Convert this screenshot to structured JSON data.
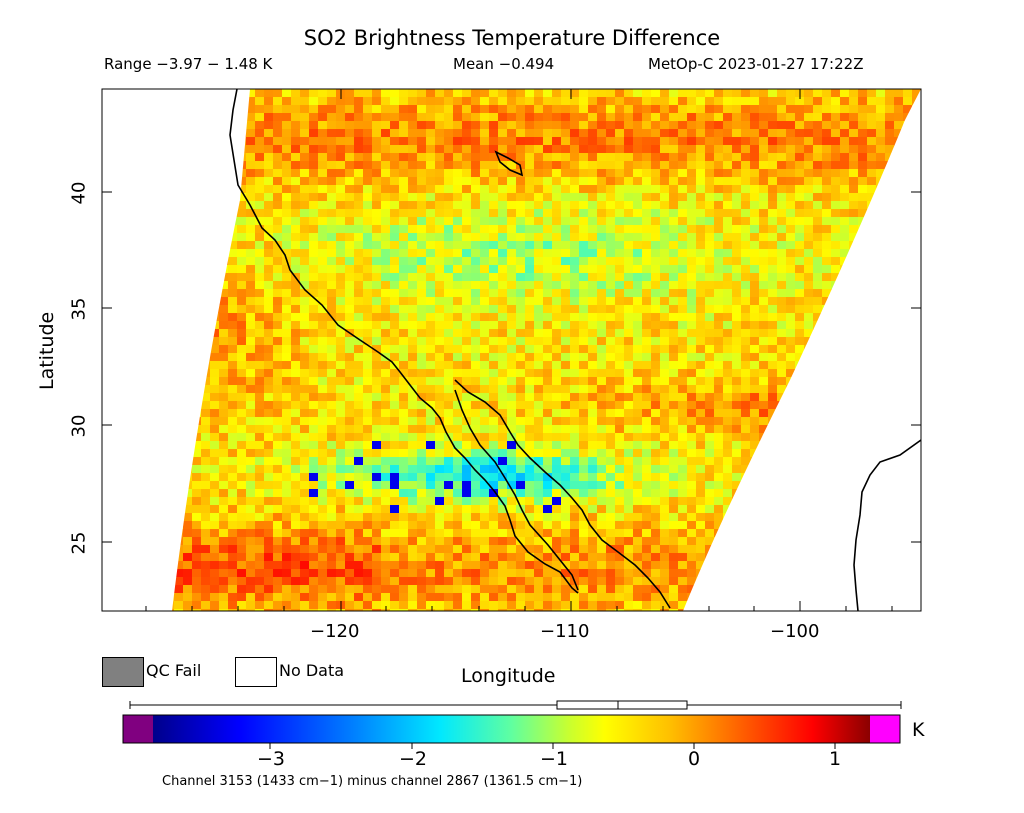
{
  "header": {
    "title": "SO2 Brightness Temperature Difference",
    "range": "Range −3.97 − 1.48 K",
    "mean": "Mean −0.494",
    "satellite": "MetOp-C 2023-01-27 17:22Z"
  },
  "axes": {
    "ylabel": "Latitude",
    "xlabel": "Longitude",
    "y_ticks": [
      "40",
      "35",
      "30",
      "25"
    ],
    "x_ticks": [
      "−120",
      "−110",
      "−100"
    ],
    "lat_range": [
      22,
      44.5
    ],
    "lon_range": [
      -130,
      -95
    ]
  },
  "legend": {
    "qc_fail": "QC Fail",
    "no_data": "No Data",
    "qc_color": "#808080",
    "no_data_color": "#ffffff"
  },
  "colorbar": {
    "unit": "K",
    "ticks": [
      "−3",
      "−2",
      "−1",
      "0",
      "1"
    ],
    "tick_values": [
      -3,
      -2,
      -1,
      0,
      1
    ],
    "min": -3.97,
    "max": 1.48,
    "mean": -0.494,
    "under_color": "#800080",
    "over_color": "#ff00ff"
  },
  "footer": {
    "channel": "Channel 3153 (1433 cm−1) minus channel 2867 (1361.5 cm−1)"
  }
}
